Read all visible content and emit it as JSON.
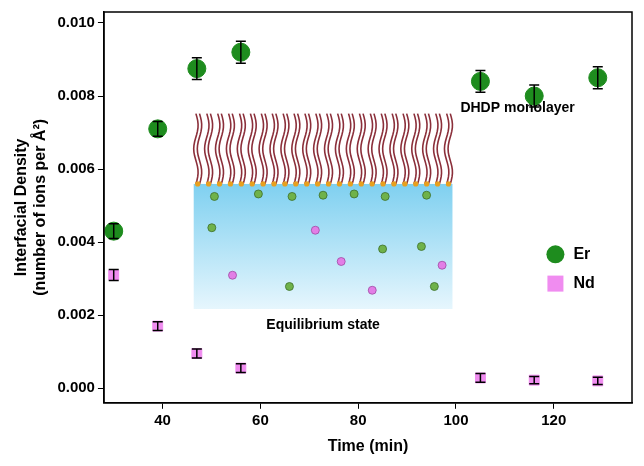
{
  "chart_data": {
    "type": "scatter",
    "x_label": "Time (min)",
    "y_label": [
      "Interfacial Density",
      "(number of ions per Å²)"
    ],
    "xlim": [
      28,
      136
    ],
    "xticks": [
      40,
      60,
      80,
      100,
      120
    ],
    "ylim": [
      -0.0004,
      0.0103
    ],
    "yticks": [
      {
        "value": 0,
        "label": "0.000"
      },
      {
        "value": 0.002,
        "label": "0.002"
      },
      {
        "value": 0.004,
        "label": "0.004"
      },
      {
        "value": 0.006,
        "label": "0.006"
      },
      {
        "value": 0.008,
        "label": "0.008"
      },
      {
        "value": 0.01,
        "label": "0.010"
      }
    ],
    "grid": false,
    "legend": "lower right",
    "series": [
      {
        "name": "Er",
        "color": "#1e8c1e",
        "marker": "circle",
        "x": [
          30,
          39,
          47,
          56,
          105,
          116,
          129
        ],
        "values": [
          0.0043,
          0.0071,
          0.00875,
          0.0092,
          0.0084,
          0.008,
          0.0085
        ],
        "errors": [
          0.0002,
          0.0002,
          0.0003,
          0.0003,
          0.0003,
          0.0003,
          0.0003
        ]
      },
      {
        "name": "Nd",
        "color": "#f08cf0",
        "marker": "square",
        "x": [
          30,
          39,
          47,
          56,
          105,
          116,
          129
        ],
        "values": [
          0.0031,
          0.0017,
          0.00095,
          0.00055,
          0.00028,
          0.00022,
          0.0002
        ],
        "errors": [
          0.00015,
          0.00012,
          0.00012,
          0.00012,
          0.00012,
          0.0001,
          0.0001
        ]
      }
    ],
    "annotations": [
      "DHDP monolayer",
      "Equilibrium state"
    ]
  }
}
